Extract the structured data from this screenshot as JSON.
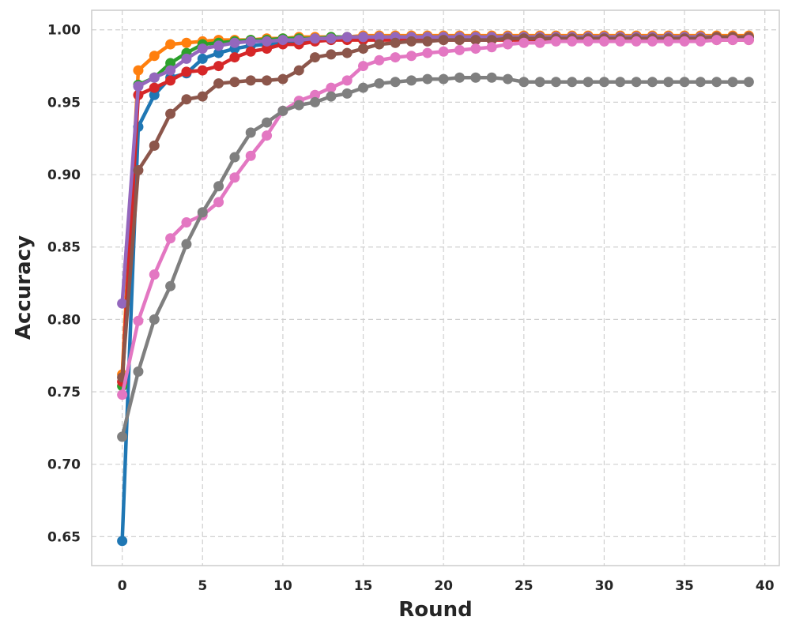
{
  "chart_data": {
    "type": "line",
    "title": "",
    "xlabel": "Round",
    "ylabel": "Accuracy",
    "xlim": [
      -1.9,
      40.9
    ],
    "ylim": [
      0.63,
      1.0135
    ],
    "xticks": [
      0,
      5,
      10,
      15,
      20,
      25,
      30,
      35,
      40
    ],
    "yticks": [
      0.65,
      0.7,
      0.75,
      0.8,
      0.85,
      0.9,
      0.95,
      1.0
    ],
    "grid": true,
    "legend": "none",
    "series": [
      {
        "color": "#1f77b4",
        "values": [
          0.647,
          0.933,
          0.955,
          0.967,
          0.97,
          0.98,
          0.984,
          0.987,
          0.989,
          0.99,
          0.991,
          0.992,
          0.993,
          0.993,
          0.994,
          0.994,
          0.994,
          0.995,
          0.995,
          0.995,
          0.995,
          0.995,
          0.995,
          0.995,
          0.995,
          0.995,
          0.995,
          0.995,
          0.995,
          0.995,
          0.995,
          0.995,
          0.995,
          0.995,
          0.995,
          0.995,
          0.995,
          0.995,
          0.995,
          0.995
        ]
      },
      {
        "color": "#ff7f0e",
        "values": [
          0.762,
          0.972,
          0.982,
          0.99,
          0.991,
          0.992,
          0.993,
          0.993,
          0.993,
          0.994,
          0.994,
          0.995,
          0.995,
          0.995,
          0.995,
          0.996,
          0.996,
          0.996,
          0.996,
          0.996,
          0.996,
          0.996,
          0.996,
          0.996,
          0.996,
          0.996,
          0.996,
          0.996,
          0.996,
          0.996,
          0.996,
          0.996,
          0.996,
          0.996,
          0.996,
          0.996,
          0.996,
          0.996,
          0.996,
          0.996
        ]
      },
      {
        "color": "#2ca02c",
        "values": [
          0.754,
          0.962,
          0.967,
          0.977,
          0.984,
          0.99,
          0.991,
          0.992,
          0.993,
          0.993,
          0.994,
          0.994,
          0.994,
          0.995,
          0.995,
          0.995,
          0.995,
          0.995,
          0.995,
          0.995,
          0.995,
          0.995,
          0.995,
          0.995,
          0.995,
          0.995,
          0.995,
          0.995,
          0.995,
          0.995,
          0.995,
          0.995,
          0.995,
          0.995,
          0.995,
          0.995,
          0.995,
          0.995,
          0.995,
          0.995
        ]
      },
      {
        "color": "#d62728",
        "values": [
          0.757,
          0.955,
          0.96,
          0.965,
          0.971,
          0.972,
          0.975,
          0.981,
          0.985,
          0.987,
          0.99,
          0.99,
          0.992,
          0.993,
          0.993,
          0.993,
          0.993,
          0.993,
          0.993,
          0.993,
          0.993,
          0.993,
          0.993,
          0.993,
          0.993,
          0.993,
          0.993,
          0.993,
          0.993,
          0.993,
          0.993,
          0.993,
          0.993,
          0.993,
          0.993,
          0.993,
          0.993,
          0.993,
          0.993,
          0.993
        ]
      },
      {
        "color": "#9467bd",
        "values": [
          0.811,
          0.961,
          0.967,
          0.972,
          0.98,
          0.987,
          0.989,
          0.991,
          0.992,
          0.992,
          0.993,
          0.993,
          0.994,
          0.994,
          0.995,
          0.995,
          0.995,
          0.995,
          0.995,
          0.995,
          0.995,
          0.995,
          0.995,
          0.995,
          0.995,
          0.995,
          0.995,
          0.995,
          0.995,
          0.995,
          0.995,
          0.995,
          0.995,
          0.995,
          0.995,
          0.995,
          0.995,
          0.995,
          0.995,
          0.995
        ]
      },
      {
        "color": "#8c564b",
        "values": [
          0.76,
          0.903,
          0.92,
          0.942,
          0.952,
          0.954,
          0.963,
          0.964,
          0.965,
          0.965,
          0.966,
          0.972,
          0.981,
          0.983,
          0.984,
          0.987,
          0.99,
          0.991,
          0.992,
          0.992,
          0.993,
          0.993,
          0.993,
          0.993,
          0.994,
          0.994,
          0.994,
          0.994,
          0.994,
          0.994,
          0.994,
          0.994,
          0.994,
          0.994,
          0.994,
          0.994,
          0.994,
          0.995,
          0.995,
          0.995
        ]
      },
      {
        "color": "#e377c2",
        "values": [
          0.748,
          0.799,
          0.831,
          0.856,
          0.867,
          0.872,
          0.881,
          0.898,
          0.913,
          0.927,
          0.944,
          0.951,
          0.955,
          0.96,
          0.965,
          0.975,
          0.979,
          0.981,
          0.982,
          0.984,
          0.985,
          0.986,
          0.987,
          0.988,
          0.99,
          0.991,
          0.991,
          0.992,
          0.992,
          0.992,
          0.992,
          0.992,
          0.992,
          0.992,
          0.992,
          0.992,
          0.992,
          0.993,
          0.993,
          0.993
        ]
      },
      {
        "color": "#7f7f7f",
        "values": [
          0.719,
          0.764,
          0.8,
          0.823,
          0.852,
          0.874,
          0.892,
          0.912,
          0.929,
          0.936,
          0.944,
          0.948,
          0.95,
          0.954,
          0.956,
          0.96,
          0.963,
          0.964,
          0.965,
          0.966,
          0.966,
          0.967,
          0.967,
          0.967,
          0.966,
          0.964,
          0.964,
          0.964,
          0.964,
          0.964,
          0.964,
          0.964,
          0.964,
          0.964,
          0.964,
          0.964,
          0.964,
          0.964,
          0.964,
          0.964
        ]
      }
    ]
  }
}
